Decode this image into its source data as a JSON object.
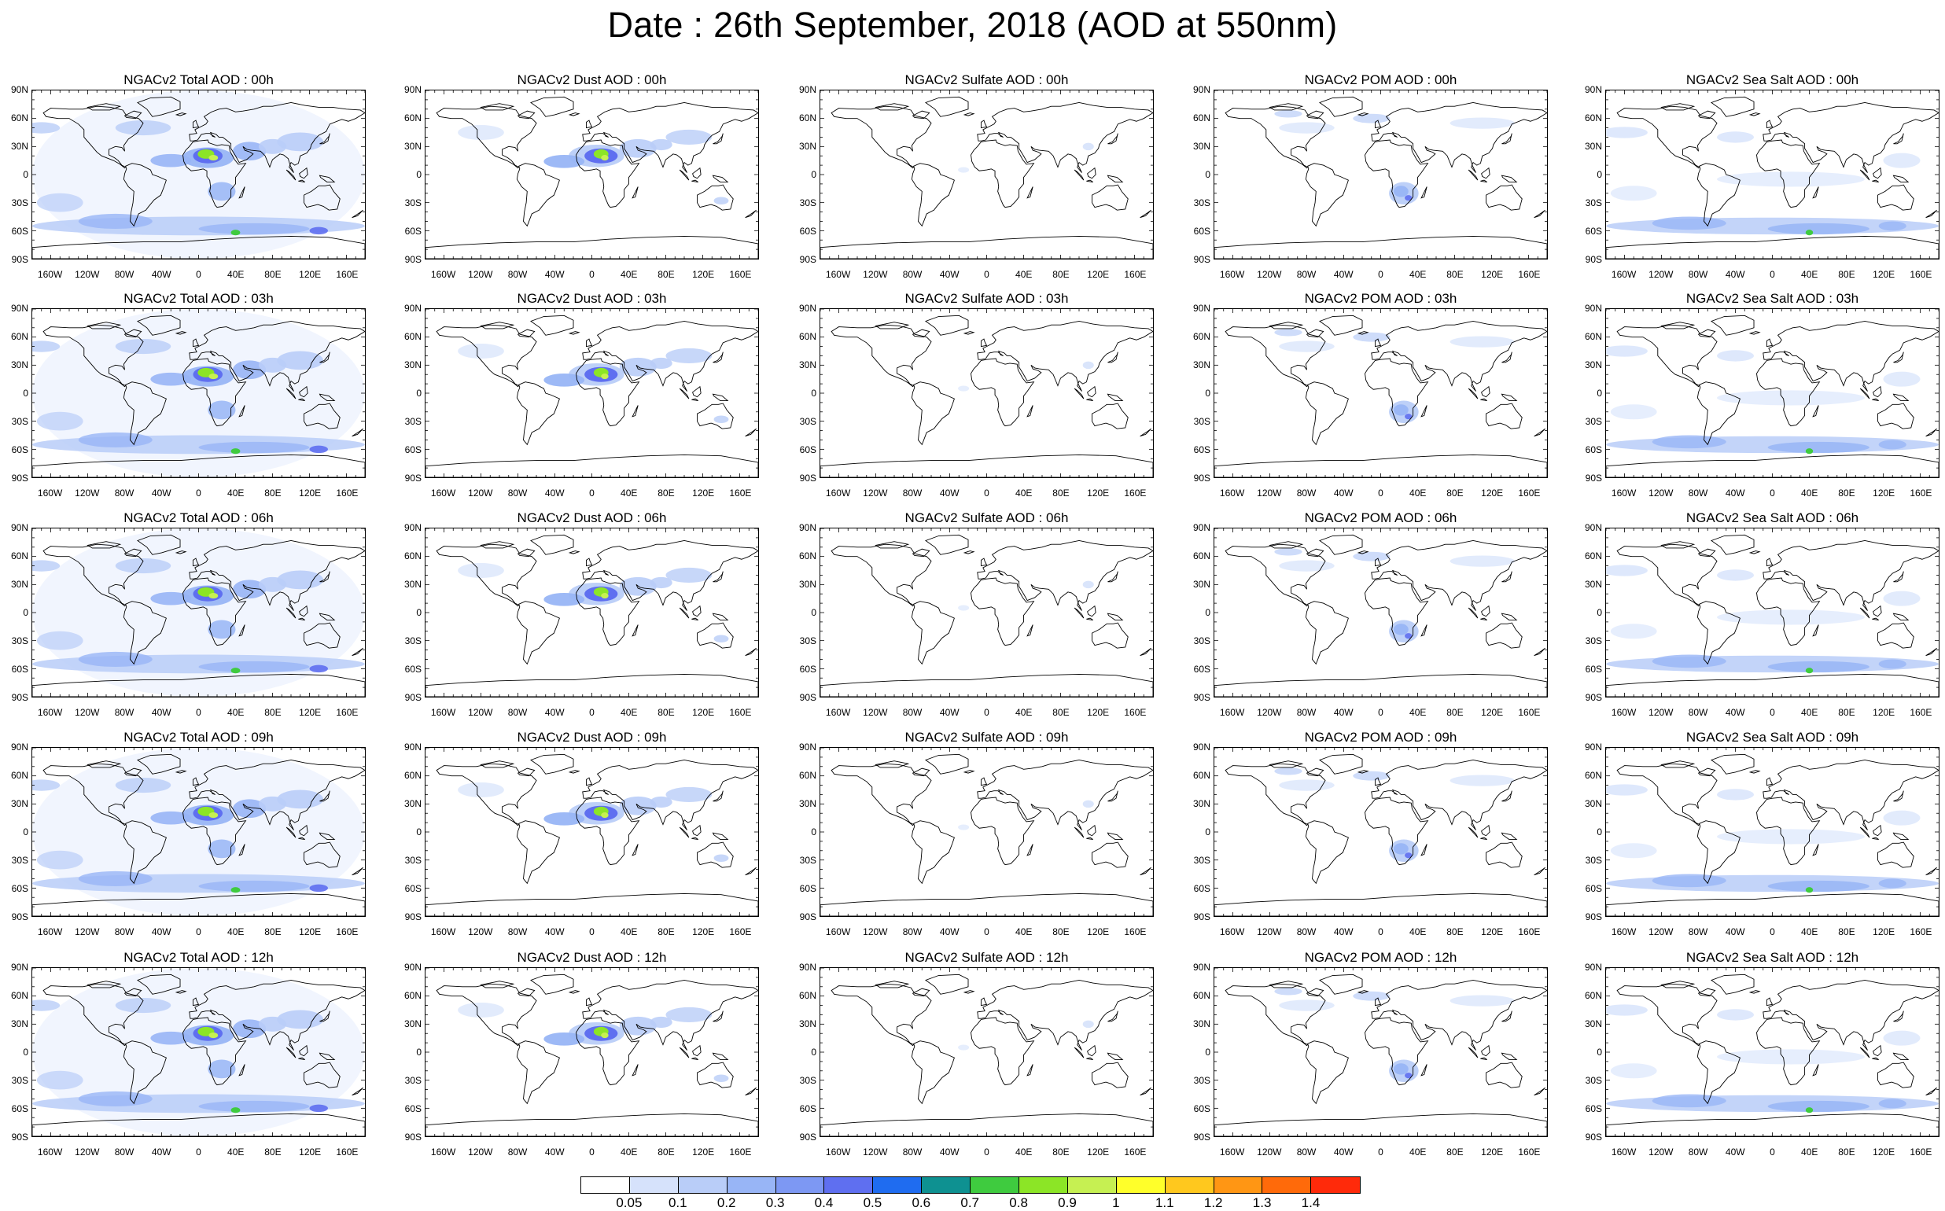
{
  "title": "Date : 26th September, 2018 (AOD at 550nm)",
  "panels": [
    [
      "NGACv2 Total AOD : 00h",
      "NGACv2 Dust AOD : 00h",
      "NGACv2 Sulfate AOD : 00h",
      "NGACv2 POM AOD : 00h",
      "NGACv2 Sea Salt AOD : 00h"
    ],
    [
      "NGACv2 Total AOD : 03h",
      "NGACv2 Dust AOD : 03h",
      "NGACv2 Sulfate AOD : 03h",
      "NGACv2 POM AOD : 03h",
      "NGACv2 Sea Salt AOD : 03h"
    ],
    [
      "NGACv2 Total AOD : 06h",
      "NGACv2 Dust AOD : 06h",
      "NGACv2 Sulfate AOD : 06h",
      "NGACv2 POM AOD : 06h",
      "NGACv2 Sea Salt AOD : 06h"
    ],
    [
      "NGACv2 Total AOD : 09h",
      "NGACv2 Dust AOD : 09h",
      "NGACv2 Sulfate AOD : 09h",
      "NGACv2 POM AOD : 09h",
      "NGACv2 Sea Salt  AOD : 09h"
    ],
    [
      "NGACv2 Total AOD  : 12h",
      "NGACv2 Dust AOD : 12h",
      "NGACv2 Sulfate AOD : 12h",
      "NGACv2 POM  AOD : 12h",
      "NGACv2 Sea Salt  AOD : 12h"
    ]
  ],
  "panel_fields": [
    "total",
    "dust",
    "sulfate",
    "pom",
    "seasalt"
  ],
  "lat_labels": [
    "90N",
    "60N",
    "30N",
    "0",
    "30S",
    "60S",
    "90S"
  ],
  "lon_labels": [
    "160W",
    "120W",
    "80W",
    "40W",
    "0",
    "40E",
    "80E",
    "120E",
    "160E"
  ],
  "colorbar": {
    "labels": [
      "0.05",
      "0.1",
      "0.2",
      "0.3",
      "0.4",
      "0.5",
      "0.6",
      "0.7",
      "0.8",
      "0.9",
      "1",
      "1.1",
      "1.2",
      "1.3",
      "1.4"
    ],
    "colors": [
      "#ffffff",
      "#d6e2fb",
      "#b9cdf8",
      "#98b5f6",
      "#7d98f3",
      "#5f6ff0",
      "#1f6cf0",
      "#0e9191",
      "#3fcb3f",
      "#8ce526",
      "#c6f052",
      "#ffff2a",
      "#ffc81e",
      "#ff9614",
      "#ff6a0a",
      "#ff2a0a"
    ]
  }
}
